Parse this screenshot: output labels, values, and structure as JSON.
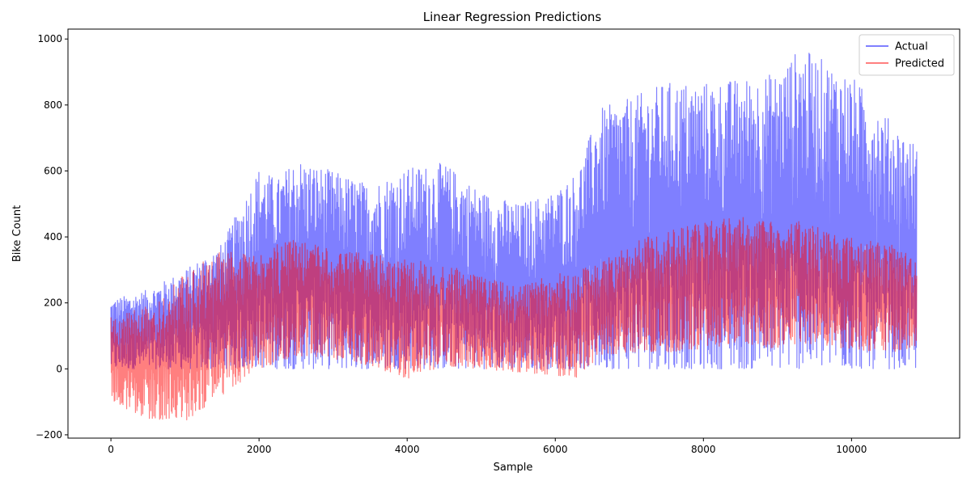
{
  "chart_data": {
    "type": "line",
    "title": "Linear Regression Predictions",
    "xlabel": "Sample",
    "ylabel": "Bike Count",
    "xlim": [
      -580,
      11460
    ],
    "ylim": [
      -210,
      1030
    ],
    "xticks": [
      0,
      2000,
      4000,
      6000,
      8000,
      10000
    ],
    "yticks": [
      -200,
      0,
      200,
      400,
      600,
      800,
      1000
    ],
    "ytick_labels": [
      "−200",
      "0",
      "200",
      "400",
      "600",
      "800",
      "1000"
    ],
    "legend_position": "top-right",
    "grid": false,
    "series": [
      {
        "name": "Actual",
        "color": "#0000ff",
        "alpha": 0.5,
        "x": [
          0,
          500,
          1000,
          1500,
          2000,
          2250,
          2500,
          3000,
          3500,
          4000,
          4500,
          5000,
          5500,
          6000,
          6300,
          6600,
          7000,
          7500,
          8000,
          8500,
          9000,
          9300,
          9600,
          10000,
          10500,
          10880
        ],
        "upper": [
          210,
          240,
          300,
          380,
          610,
          575,
          640,
          600,
          560,
          610,
          625,
          540,
          500,
          540,
          600,
          790,
          820,
          870,
          870,
          880,
          900,
          975,
          940,
          890,
          760,
          680
        ],
        "lower": [
          0,
          0,
          0,
          0,
          5,
          0,
          0,
          0,
          0,
          0,
          0,
          0,
          0,
          0,
          0,
          0,
          0,
          0,
          0,
          0,
          0,
          0,
          0,
          0,
          0,
          0
        ]
      },
      {
        "name": "Predicted",
        "color": "#ff0000",
        "alpha": 0.5,
        "x": [
          0,
          500,
          1000,
          1500,
          2000,
          2250,
          2500,
          3000,
          3500,
          4000,
          4500,
          5000,
          5500,
          6000,
          6300,
          6600,
          7000,
          7500,
          8000,
          8500,
          9000,
          9300,
          9600,
          10000,
          10500,
          10880
        ],
        "upper": [
          160,
          190,
          290,
          360,
          340,
          380,
          395,
          360,
          350,
          330,
          320,
          280,
          250,
          290,
          300,
          320,
          380,
          420,
          450,
          470,
          440,
          450,
          430,
          400,
          380,
          340
        ],
        "lower": [
          -100,
          -150,
          -160,
          -80,
          0,
          20,
          40,
          30,
          10,
          -30,
          10,
          0,
          -10,
          -20,
          -30,
          40,
          50,
          50,
          60,
          80,
          60,
          80,
          70,
          60,
          50,
          60
        ]
      }
    ]
  }
}
